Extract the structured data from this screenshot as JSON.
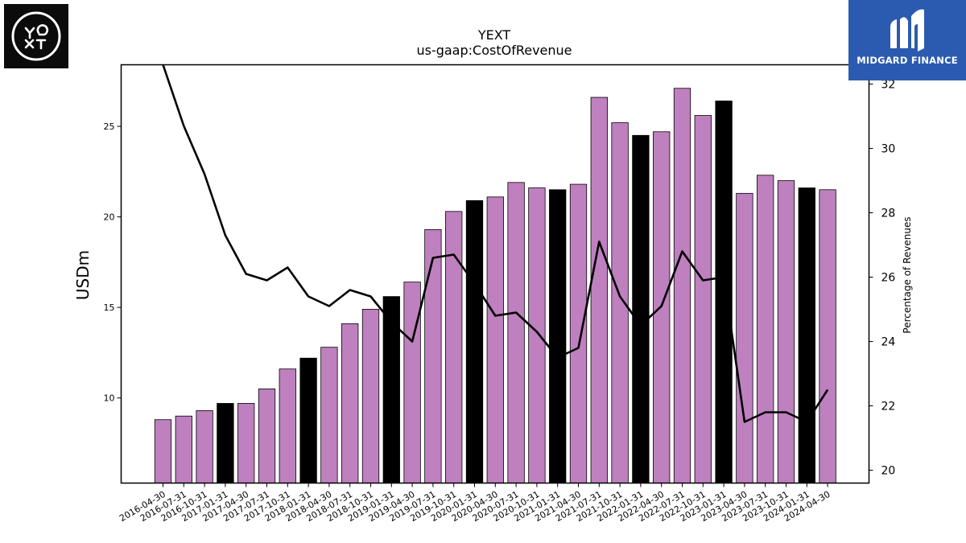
{
  "header": {
    "title": "YEXT",
    "subtitle": "us-gaap:CostOfRevenue"
  },
  "logos": {
    "left_text": "YEXT",
    "right_text": "MIDGARD FINANCE"
  },
  "colors": {
    "bar_regular": "#bf80bf",
    "bar_highlight": "#000000",
    "line": "#000000"
  },
  "chart_data": {
    "type": "bar",
    "title": "YEXT",
    "subtitle": "us-gaap:CostOfRevenue",
    "ylabel": "USDm",
    "y2label": "Percentage of Revenues",
    "ylim": [
      5.3,
      28.4
    ],
    "y2lim": [
      19.6,
      32.6
    ],
    "yticks": [
      10,
      15,
      20,
      25
    ],
    "y2ticks": [
      20,
      22,
      24,
      26,
      28,
      30,
      32
    ],
    "grid": false,
    "categories": [
      "2016-04-30",
      "2016-07-31",
      "2016-10-31",
      "2017-01-31",
      "2017-04-30",
      "2017-07-31",
      "2017-10-31",
      "2018-01-31",
      "2018-04-30",
      "2018-07-31",
      "2018-10-31",
      "2019-01-31",
      "2019-04-30",
      "2019-07-31",
      "2019-10-31",
      "2020-01-31",
      "2020-04-30",
      "2020-07-31",
      "2020-10-31",
      "2021-01-31",
      "2021-04-30",
      "2021-07-31",
      "2021-10-31",
      "2022-01-31",
      "2022-04-30",
      "2022-07-31",
      "2022-10-31",
      "2023-01-31",
      "2023-04-30",
      "2023-07-31",
      "2023-10-31",
      "2024-01-31",
      "2024-04-30"
    ],
    "series": [
      {
        "type": "bar",
        "values": [
          8.8,
          9.0,
          9.3,
          9.7,
          9.7,
          10.5,
          11.6,
          12.2,
          12.8,
          14.1,
          14.9,
          15.6,
          16.4,
          19.3,
          20.3,
          20.9,
          21.1,
          21.9,
          21.6,
          21.5,
          21.8,
          26.6,
          25.2,
          24.5,
          24.7,
          27.1,
          25.6,
          26.4,
          21.3,
          22.3,
          22.0,
          21.6,
          21.5
        ],
        "highlight": [
          false,
          false,
          false,
          true,
          false,
          false,
          false,
          true,
          false,
          false,
          false,
          true,
          false,
          false,
          false,
          true,
          false,
          false,
          false,
          true,
          false,
          false,
          false,
          true,
          false,
          false,
          false,
          true,
          false,
          false,
          false,
          true,
          false
        ]
      },
      {
        "type": "line",
        "axis": "secondary",
        "values": [
          32.6,
          30.7,
          29.2,
          27.3,
          26.1,
          25.9,
          26.3,
          25.4,
          25.1,
          25.6,
          25.4,
          24.6,
          24.0,
          26.6,
          26.7,
          25.8,
          24.8,
          24.9,
          24.3,
          23.5,
          23.8,
          27.1,
          25.4,
          24.5,
          25.1,
          26.8,
          25.9,
          26.0,
          21.5,
          21.8,
          21.8,
          21.5,
          22.5
        ]
      }
    ]
  }
}
